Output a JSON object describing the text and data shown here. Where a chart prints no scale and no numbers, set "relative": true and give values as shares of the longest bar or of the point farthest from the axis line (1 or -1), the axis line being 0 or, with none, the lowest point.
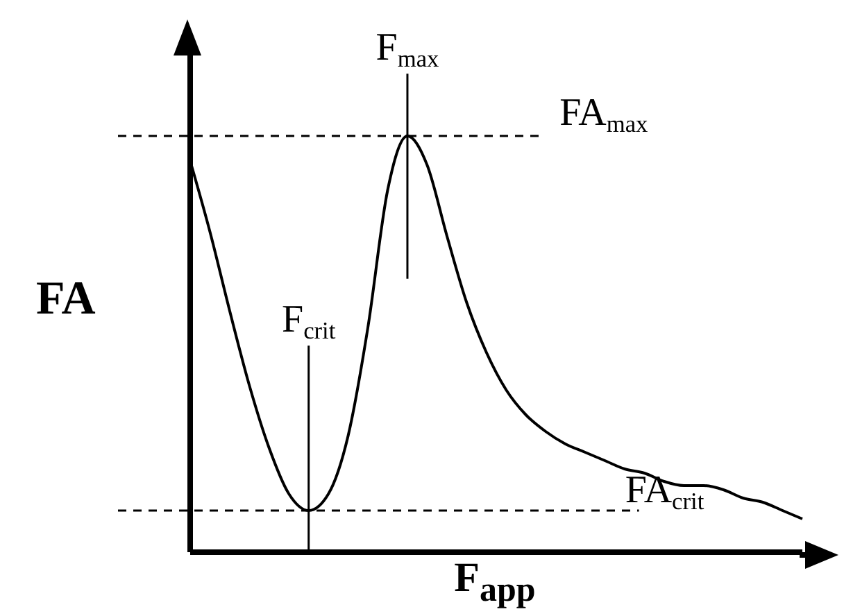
{
  "chart_data": {
    "type": "line",
    "relative": true,
    "xlabel": "F$_{app}$",
    "ylabel": "FA",
    "marker": "none",
    "categories": [
      null,
      null,
      null,
      null,
      null,
      null,
      null,
      null,
      null,
      null,
      null,
      null,
      null,
      null,
      null,
      null,
      null,
      null,
      null,
      null,
      null,
      null,
      null,
      null,
      null,
      null,
      null,
      null,
      null,
      null,
      null,
      null
    ],
    "series": [
      {
        "color": "#000000",
        "values": [
          0.94,
          0.77,
          0.58,
          0.4,
          0.25,
          0.14,
          0.1,
          0.14,
          0.28,
          0.54,
          0.87,
          1.0,
          0.93,
          0.76,
          0.6,
          0.48,
          0.39,
          0.33,
          0.29,
          0.26,
          0.24,
          0.22,
          0.2,
          0.19,
          0.17,
          0.16,
          0.16,
          0.15,
          0.13,
          0.12,
          0.1,
          0.08
        ]
      }
    ],
    "ref_lines": [
      {
        "axis": "y",
        "value": 1,
        "label": "FA$_{max}$",
        "line_style": "dashed"
      },
      {
        "axis": "y",
        "value": 0.1,
        "label": "FA$_{crit}$",
        "line_style": "dashed"
      }
    ],
    "annotations": [
      "F$_{max}$",
      "F$_{crit}$"
    ]
  }
}
